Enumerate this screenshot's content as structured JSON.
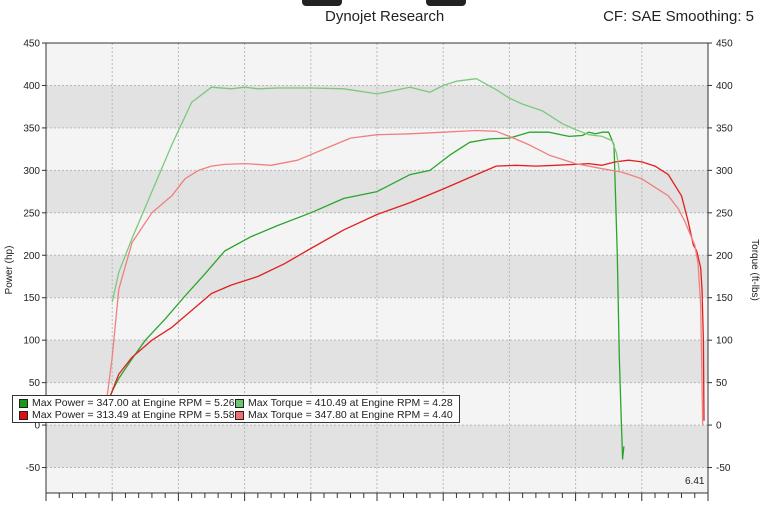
{
  "header": {
    "title": "Dynojet Research",
    "cf_label": "CF: SAE Smoothing: 5"
  },
  "corner_value": "6.41",
  "legend": [
    {
      "label": "Max Power = 347.00 at Engine RPM = 5.26",
      "color": "#1a9a1a"
    },
    {
      "label": "Max Power = 313.49 at Engine RPM = 5.58",
      "color": "#e01010"
    },
    {
      "label": "Max Torque = 410.49 at Engine RPM = 4.28",
      "color": "#6cc46c"
    },
    {
      "label": "Max Torque = 347.80 at Engine RPM = 4.40",
      "color": "#f07070"
    }
  ],
  "chart_data": {
    "type": "line",
    "ylabel_left": "Power (hp)",
    "ylabel_right": "Torque (ft-lbs)",
    "ylim": [
      -80,
      450
    ],
    "yticks": [
      -50,
      0,
      50,
      100,
      150,
      200,
      250,
      300,
      350,
      400,
      450
    ],
    "xlim": [
      0,
      100
    ],
    "grid": true,
    "series": [
      {
        "name": "Max Power = 347.00 at Engine RPM = 5.26",
        "color": "#2aa52a",
        "x": [
          9,
          10,
          11,
          13,
          15,
          18,
          21,
          24,
          27,
          31,
          35,
          40,
          45,
          50,
          55,
          58,
          61,
          64,
          67,
          70,
          73,
          76,
          79,
          81,
          82,
          83,
          84,
          85,
          85.8,
          86.3,
          86.6,
          86.9,
          87.1,
          87.3
        ],
        "values": [
          20,
          40,
          55,
          78,
          100,
          125,
          152,
          178,
          205,
          222,
          235,
          250,
          267,
          275,
          295,
          300,
          318,
          333,
          337,
          338,
          345,
          345,
          340,
          341,
          345,
          343,
          345,
          345,
          330,
          200,
          80,
          5,
          -40,
          -25
        ]
      },
      {
        "name": "Max Power = 313.49 at Engine RPM = 5.58",
        "color": "#e02020",
        "x": [
          9,
          10,
          11,
          13,
          16,
          19,
          22,
          25,
          28,
          32,
          36,
          40,
          45,
          50,
          55,
          60,
          65,
          68,
          71,
          74,
          77,
          80,
          82,
          84,
          86,
          88,
          90,
          92,
          94,
          96,
          97,
          97.8,
          98.3,
          98.6,
          98.9,
          99.1,
          99.3,
          99.4
        ],
        "values": [
          20,
          40,
          60,
          80,
          100,
          115,
          135,
          155,
          165,
          175,
          190,
          208,
          230,
          248,
          262,
          278,
          295,
          305,
          306,
          305,
          306,
          307,
          308,
          306,
          310,
          312,
          310,
          305,
          295,
          270,
          240,
          212,
          205,
          195,
          185,
          160,
          100,
          5
        ]
      },
      {
        "name": "Max Torque = 410.49 at Engine RPM = 4.28",
        "color": "#7cc97c",
        "x": [
          10,
          11,
          13,
          16,
          19,
          22,
          25,
          28,
          30,
          32,
          35,
          40,
          45,
          50,
          55,
          58,
          60,
          62,
          65,
          68,
          70,
          72,
          75,
          78,
          80,
          82,
          84,
          85.5,
          86.2,
          86.6
        ],
        "values": [
          145,
          180,
          220,
          275,
          330,
          380,
          398,
          396,
          398,
          396,
          397,
          397,
          396,
          390,
          398,
          392,
          400,
          405,
          408,
          395,
          385,
          378,
          370,
          355,
          348,
          342,
          340,
          335,
          320,
          300
        ]
      },
      {
        "name": "Max Torque = 347.80 at Engine RPM = 4.40",
        "color": "#f08080",
        "x": [
          9,
          10,
          11,
          13,
          16,
          19,
          21,
          23,
          25,
          27,
          30,
          34,
          38,
          42,
          46,
          50,
          55,
          60,
          65,
          68,
          70,
          73,
          76,
          80,
          84,
          87,
          90,
          92,
          94,
          95.5,
          96.5,
          97.3,
          98,
          98.5,
          98.9,
          99.2
        ],
        "values": [
          20,
          80,
          160,
          215,
          250,
          270,
          290,
          300,
          305,
          307,
          308,
          306,
          312,
          325,
          338,
          342,
          343,
          345,
          347,
          346,
          340,
          330,
          318,
          308,
          302,
          298,
          290,
          280,
          270,
          255,
          240,
          225,
          212,
          190,
          140,
          0
        ]
      }
    ]
  }
}
